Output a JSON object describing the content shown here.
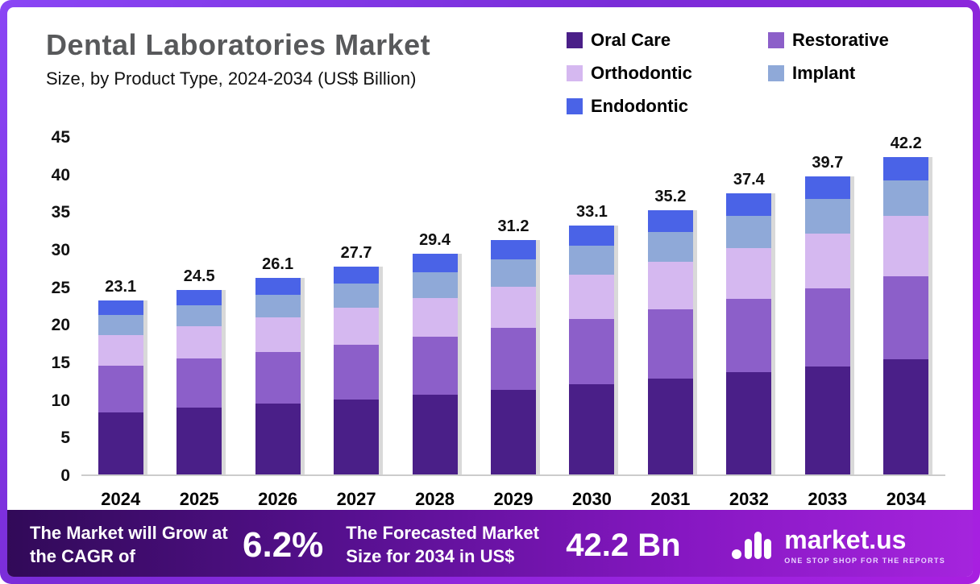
{
  "header": {
    "title": "Dental Laboratories Market",
    "subtitle": "Size, by Product Type, 2024-2034 (US$ Billion)"
  },
  "legend": [
    {
      "label": "Oral Care",
      "color": "#4a1f88"
    },
    {
      "label": "Restorative",
      "color": "#8c5fc9"
    },
    {
      "label": "Orthodontic",
      "color": "#d5b8f0"
    },
    {
      "label": "Implant",
      "color": "#8fa9d8"
    },
    {
      "label": "Endodontic",
      "color": "#4a63e7"
    }
  ],
  "chart_data": {
    "type": "bar",
    "stacked": true,
    "title": "Dental Laboratories Market Size, by Product Type, 2024-2034 (US$ Billion)",
    "categories": [
      "2024",
      "2025",
      "2026",
      "2027",
      "2028",
      "2029",
      "2030",
      "2031",
      "2032",
      "2033",
      "2034"
    ],
    "series": [
      {
        "name": "Oral Care",
        "color": "#4a1f88",
        "values": [
          8.3,
          8.9,
          9.4,
          10.0,
          10.6,
          11.3,
          12.0,
          12.8,
          13.6,
          14.4,
          15.3
        ]
      },
      {
        "name": "Restorative",
        "color": "#8c5fc9",
        "values": [
          6.2,
          6.5,
          6.9,
          7.3,
          7.7,
          8.2,
          8.7,
          9.2,
          9.8,
          10.4,
          11.1
        ]
      },
      {
        "name": "Orthodontic",
        "color": "#d5b8f0",
        "values": [
          4.0,
          4.3,
          4.6,
          4.9,
          5.2,
          5.5,
          5.9,
          6.3,
          6.7,
          7.2,
          8.0
        ]
      },
      {
        "name": "Implant",
        "color": "#8fa9d8",
        "values": [
          2.7,
          2.8,
          3.0,
          3.2,
          3.4,
          3.6,
          3.8,
          4.0,
          4.3,
          4.6,
          4.7
        ]
      },
      {
        "name": "Endodontic",
        "color": "#4a63e7",
        "values": [
          1.9,
          2.0,
          2.2,
          2.3,
          2.5,
          2.6,
          2.7,
          2.9,
          3.0,
          3.1,
          3.1
        ]
      }
    ],
    "totals": [
      23.1,
      24.5,
      26.1,
      27.7,
      29.4,
      31.2,
      33.1,
      35.2,
      37.4,
      39.7,
      42.2
    ],
    "xlabel": "",
    "ylabel": "US$ Billion",
    "ylim": [
      0,
      45
    ],
    "yticks": [
      0,
      5,
      10,
      15,
      20,
      25,
      30,
      35,
      40,
      45
    ],
    "legend_position": "top-right",
    "grid": false
  },
  "footer": {
    "cagr_label": "The Market will Grow at the CAGR of",
    "cagr_value": "6.2%",
    "forecast_label": "The Forecasted Market Size for 2034 in US$",
    "forecast_value": "42.2 Bn",
    "brand": "market.us",
    "brand_tagline": "ONE STOP SHOP FOR THE REPORTS"
  }
}
